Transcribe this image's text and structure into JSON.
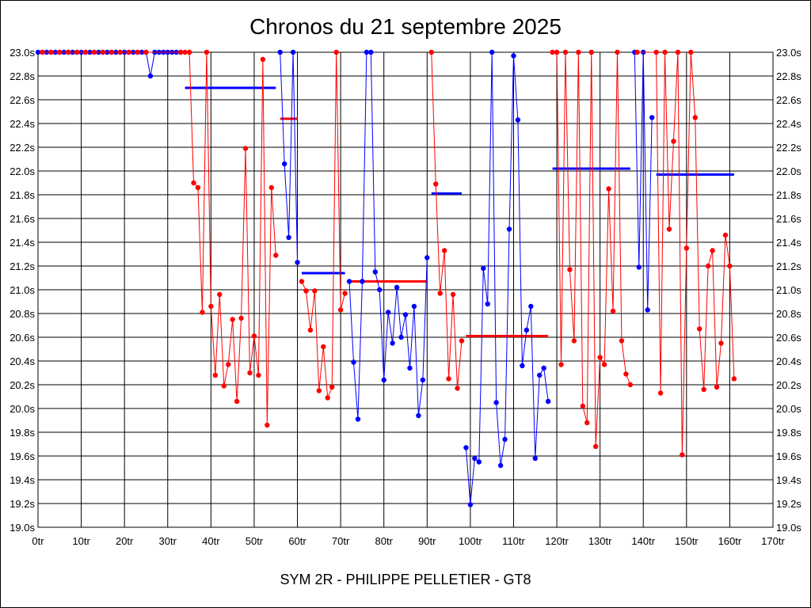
{
  "colors": {
    "red": "#ff0000",
    "blue": "#0000ff",
    "grid": "#000000"
  },
  "chart_data": {
    "type": "line",
    "title": "Chronos du 21 septembre 2025",
    "footer": "SYM 2R - PHILIPPE PELLETIER - GT8",
    "xlim": [
      0,
      170
    ],
    "ylim": [
      19.0,
      23.0
    ],
    "x_ticks": [
      0,
      10,
      20,
      30,
      40,
      50,
      60,
      70,
      80,
      90,
      100,
      110,
      120,
      130,
      140,
      150,
      160,
      170
    ],
    "x_tick_labels": [
      "0tr",
      "10tr",
      "20tr",
      "30tr",
      "40tr",
      "50tr",
      "60tr",
      "70tr",
      "80tr",
      "90tr",
      "100tr",
      "110tr",
      "120tr",
      "130tr",
      "140tr",
      "150tr",
      "160tr",
      "170tr"
    ],
    "y_ticks": [
      19.0,
      19.2,
      19.4,
      19.6,
      19.8,
      20.0,
      20.2,
      20.4,
      20.6,
      20.8,
      21.0,
      21.2,
      21.4,
      21.6,
      21.8,
      22.0,
      22.2,
      22.4,
      22.6,
      22.8,
      23.0
    ],
    "y_tick_labels": [
      "19.0s",
      "19.2s",
      "19.4s",
      "19.6s",
      "19.8s",
      "20.0s",
      "20.2s",
      "20.4s",
      "20.6s",
      "20.8s",
      "21.0s",
      "21.2s",
      "21.4s",
      "21.6s",
      "21.8s",
      "22.0s",
      "22.2s",
      "22.4s",
      "22.6s",
      "22.8s",
      "23.0s"
    ],
    "grid": true,
    "series": [
      {
        "color": "#0000ff",
        "points": [
          [
            0,
            23.0
          ],
          [
            1,
            23.0
          ],
          [
            2,
            23.0
          ],
          [
            3,
            23.0
          ],
          [
            4,
            23.0
          ],
          [
            5,
            23.0
          ],
          [
            6,
            23.0
          ],
          [
            7,
            23.0
          ],
          [
            8,
            23.0
          ],
          [
            9,
            23.0
          ],
          [
            10,
            23.0
          ],
          [
            11,
            23.0
          ],
          [
            12,
            23.0
          ],
          [
            13,
            23.0
          ],
          [
            14,
            23.0
          ],
          [
            15,
            23.0
          ],
          [
            16,
            23.0
          ],
          [
            17,
            23.0
          ],
          [
            18,
            23.0
          ],
          [
            19,
            23.0
          ],
          [
            20,
            23.0
          ],
          [
            21,
            23.0
          ],
          [
            22,
            23.0
          ],
          [
            23,
            23.0
          ],
          [
            24,
            23.0
          ],
          [
            25,
            23.0
          ],
          [
            26,
            22.8
          ],
          [
            27,
            23.0
          ],
          [
            28,
            23.0
          ],
          [
            29,
            23.0
          ],
          [
            30,
            23.0
          ],
          [
            31,
            23.0
          ],
          [
            32,
            23.0
          ],
          [
            33,
            23.0
          ]
        ]
      },
      {
        "color": "#ff0000",
        "points": [
          [
            1,
            23.0
          ],
          [
            3,
            23.0
          ],
          [
            5,
            23.0
          ],
          [
            7,
            23.0
          ],
          [
            9,
            23.0
          ],
          [
            11,
            23.0
          ],
          [
            13,
            23.0
          ],
          [
            15,
            23.0
          ],
          [
            17,
            23.0
          ],
          [
            19,
            23.0
          ],
          [
            21,
            23.0
          ],
          [
            23,
            23.0
          ],
          [
            25,
            23.0
          ],
          [
            33,
            23.0
          ],
          [
            34,
            23.0
          ],
          [
            35,
            23.0
          ],
          [
            36,
            21.9
          ],
          [
            37,
            21.86
          ],
          [
            38,
            20.81
          ],
          [
            39,
            23.0
          ],
          [
            40,
            20.86
          ],
          [
            41,
            20.28
          ],
          [
            42,
            20.96
          ],
          [
            43,
            20.19
          ],
          [
            44,
            20.37
          ],
          [
            45,
            20.75
          ],
          [
            46,
            20.06
          ],
          [
            47,
            20.76
          ],
          [
            48,
            22.19
          ],
          [
            49,
            20.3
          ],
          [
            50,
            20.61
          ],
          [
            51,
            20.28
          ],
          [
            52,
            22.94
          ],
          [
            53,
            19.86
          ],
          [
            54,
            21.86
          ],
          [
            55,
            21.29
          ]
        ]
      },
      {
        "color": "#0000ff",
        "points": [
          [
            56,
            23.0
          ],
          [
            57,
            22.06
          ],
          [
            58,
            21.44
          ],
          [
            59,
            23.0
          ],
          [
            60,
            21.23
          ]
        ]
      },
      {
        "color": "#ff0000",
        "points": [
          [
            61,
            21.07
          ],
          [
            62,
            20.99
          ],
          [
            63,
            20.66
          ],
          [
            64,
            20.99
          ],
          [
            65,
            20.15
          ],
          [
            66,
            20.52
          ],
          [
            67,
            20.09
          ],
          [
            68,
            20.18
          ],
          [
            69,
            23.0
          ],
          [
            70,
            20.83
          ],
          [
            71,
            20.97
          ]
        ]
      },
      {
        "color": "#0000ff",
        "points": [
          [
            72,
            21.07
          ],
          [
            73,
            20.39
          ],
          [
            74,
            19.91
          ],
          [
            75,
            21.07
          ],
          [
            76,
            23.0
          ],
          [
            77,
            23.0
          ],
          [
            78,
            21.15
          ],
          [
            79,
            21.0
          ],
          [
            80,
            20.24
          ],
          [
            81,
            20.81
          ],
          [
            82,
            20.55
          ],
          [
            83,
            21.02
          ],
          [
            84,
            20.6
          ],
          [
            85,
            20.79
          ],
          [
            86,
            20.34
          ],
          [
            87,
            20.86
          ],
          [
            88,
            19.94
          ],
          [
            89,
            20.24
          ],
          [
            90,
            21.27
          ]
        ]
      },
      {
        "color": "#ff0000",
        "points": [
          [
            91,
            23.0
          ],
          [
            92,
            21.89
          ],
          [
            93,
            20.97
          ],
          [
            94,
            21.33
          ],
          [
            95,
            20.25
          ],
          [
            96,
            20.96
          ],
          [
            97,
            20.17
          ],
          [
            98,
            20.57
          ]
        ]
      },
      {
        "color": "#0000ff",
        "points": [
          [
            99,
            19.67
          ],
          [
            100,
            19.19
          ],
          [
            101,
            19.58
          ],
          [
            102,
            19.55
          ],
          [
            103,
            21.18
          ],
          [
            104,
            20.88
          ],
          [
            105,
            23.0
          ],
          [
            106,
            20.05
          ],
          [
            107,
            19.52
          ],
          [
            108,
            19.74
          ],
          [
            109,
            21.51
          ],
          [
            110,
            22.97
          ],
          [
            111,
            22.43
          ],
          [
            112,
            20.36
          ],
          [
            113,
            20.66
          ],
          [
            114,
            20.86
          ],
          [
            115,
            19.58
          ],
          [
            116,
            20.28
          ],
          [
            117,
            20.34
          ],
          [
            118,
            20.06
          ]
        ]
      },
      {
        "color": "#ff0000",
        "points": [
          [
            119,
            23.0
          ],
          [
            120,
            23.0
          ],
          [
            121,
            20.37
          ],
          [
            122,
            23.0
          ],
          [
            123,
            21.17
          ],
          [
            124,
            20.57
          ],
          [
            125,
            23.0
          ],
          [
            126,
            20.02
          ],
          [
            127,
            19.88
          ],
          [
            128,
            23.0
          ],
          [
            129,
            19.68
          ],
          [
            130,
            20.43
          ],
          [
            131,
            20.37
          ],
          [
            132,
            21.85
          ],
          [
            133,
            20.82
          ],
          [
            134,
            23.0
          ],
          [
            135,
            20.57
          ],
          [
            136,
            20.29
          ],
          [
            137,
            20.2
          ]
        ]
      },
      {
        "color": "#0000ff",
        "points": [
          [
            138,
            23.0
          ],
          [
            139,
            21.19
          ],
          [
            140,
            23.0
          ],
          [
            141,
            20.83
          ],
          [
            142,
            22.45
          ]
        ]
      },
      {
        "color": "#ff0000",
        "points": [
          [
            138.6,
            23.0
          ],
          [
            143,
            23.0
          ],
          [
            144,
            20.13
          ],
          [
            145,
            23.0
          ],
          [
            146,
            21.51
          ],
          [
            147,
            22.25
          ],
          [
            148,
            23.0
          ],
          [
            149,
            19.61
          ],
          [
            150,
            21.35
          ],
          [
            151,
            23.0
          ],
          [
            152,
            22.45
          ],
          [
            153,
            20.67
          ],
          [
            154,
            20.16
          ],
          [
            155,
            21.2
          ],
          [
            156,
            21.33
          ],
          [
            157,
            20.18
          ],
          [
            158,
            20.55
          ],
          [
            159,
            21.46
          ],
          [
            160,
            21.2
          ],
          [
            161,
            20.25
          ]
        ]
      }
    ],
    "averages": [
      {
        "color": "#0000ff",
        "x0": 34,
        "x1": 55,
        "y": 22.7
      },
      {
        "color": "#ff0000",
        "x0": 56,
        "x1": 60,
        "y": 22.44
      },
      {
        "color": "#0000ff",
        "x0": 61,
        "x1": 71,
        "y": 21.14
      },
      {
        "color": "#ff0000",
        "x0": 72,
        "x1": 90,
        "y": 21.07
      },
      {
        "color": "#0000ff",
        "x0": 91,
        "x1": 98,
        "y": 21.81
      },
      {
        "color": "#ff0000",
        "x0": 99,
        "x1": 118,
        "y": 20.61
      },
      {
        "color": "#0000ff",
        "x0": 119,
        "x1": 137,
        "y": 22.02
      },
      {
        "color": "#0000ff",
        "x0": 143,
        "x1": 161,
        "y": 21.97
      }
    ]
  }
}
